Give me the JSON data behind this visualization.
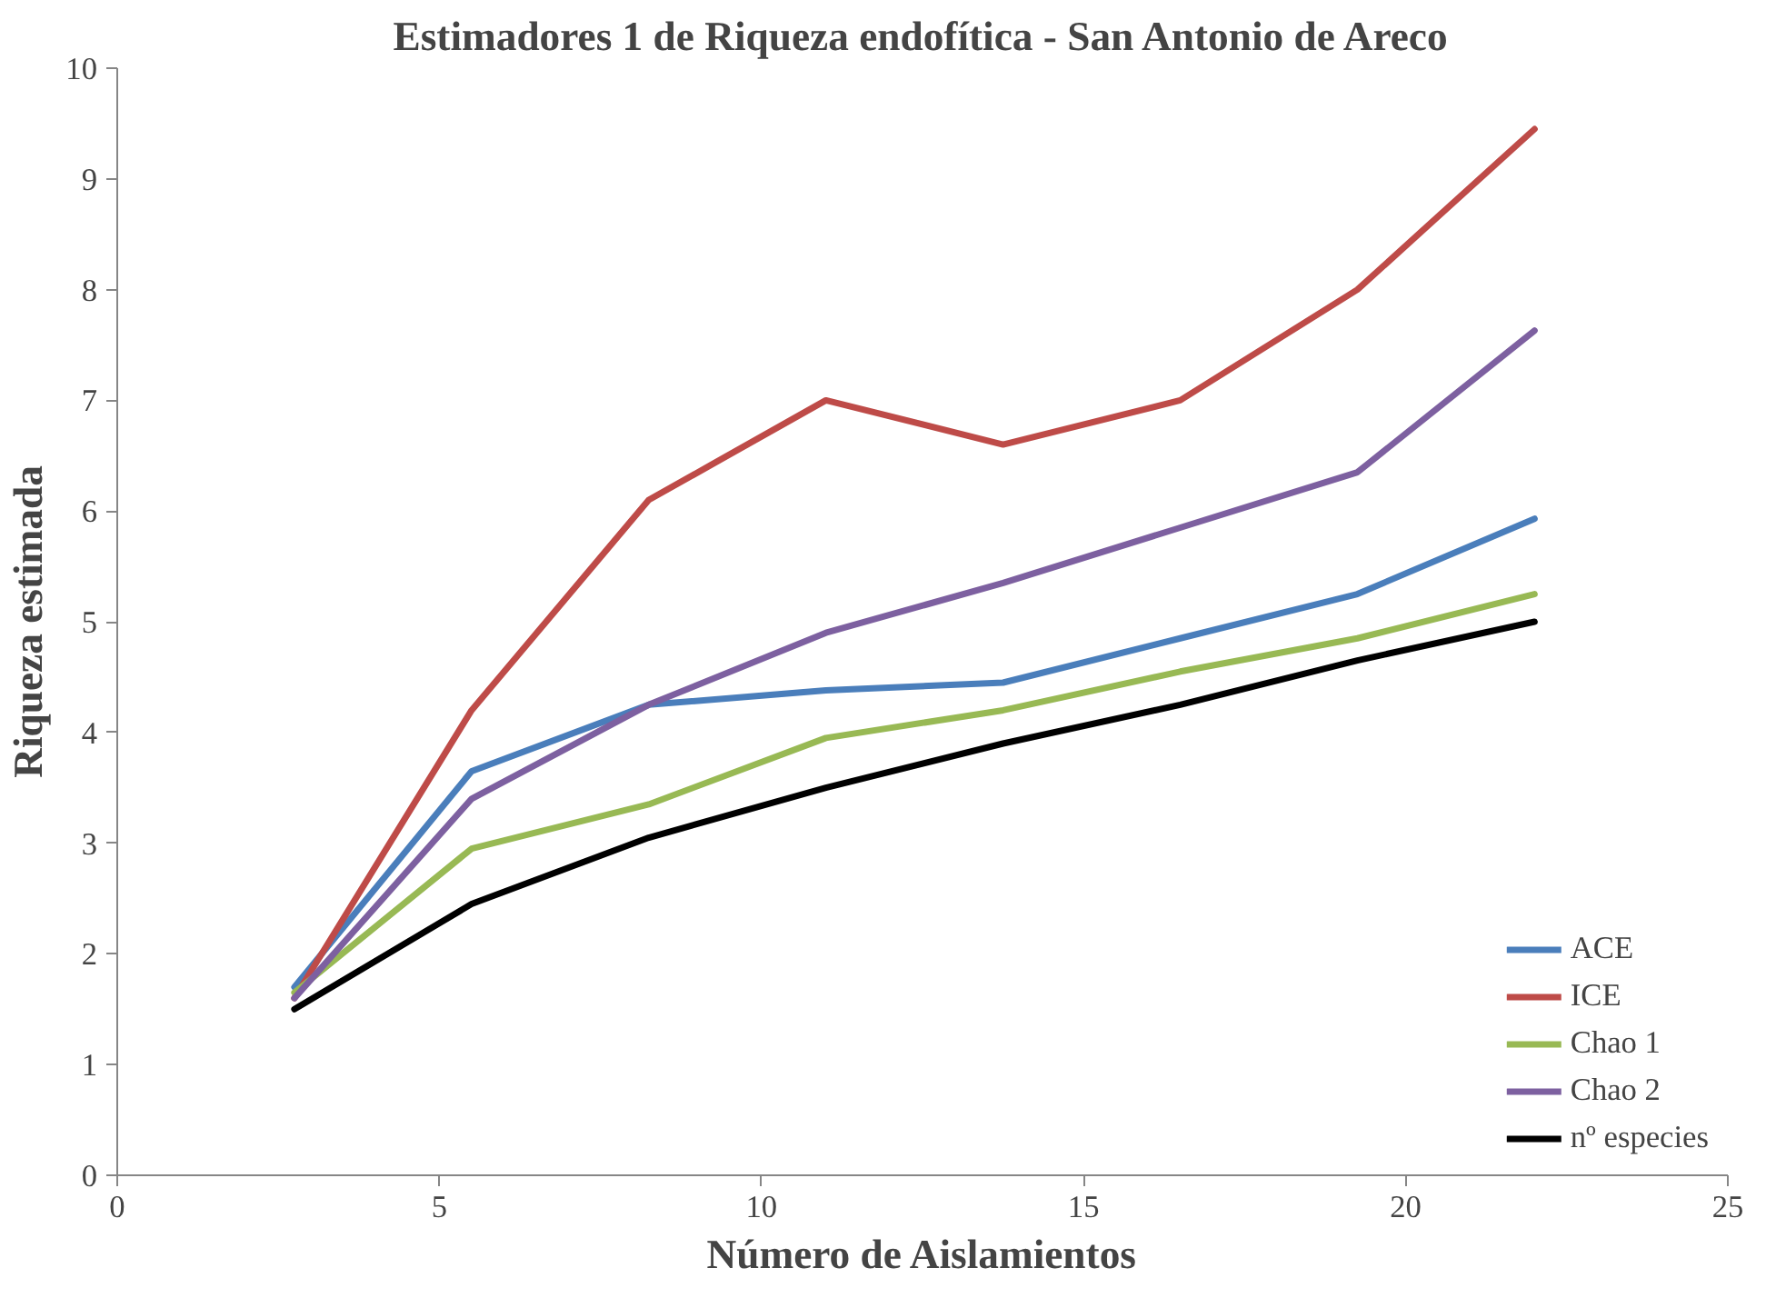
{
  "chart_data": {
    "type": "line",
    "title": "Estimadores 1 de Riqueza endofítica - San Antonio de Areco",
    "xlabel": "Número de Aislamientos",
    "ylabel": "Riqueza estimada",
    "x": [
      2.75,
      5.5,
      8.25,
      11,
      13.75,
      16.5,
      19.25,
      22
    ],
    "series": [
      {
        "name": "ACE",
        "color": "#4a7ebb",
        "values": [
          1.7,
          3.65,
          4.25,
          4.38,
          4.45,
          4.85,
          5.25,
          5.93
        ]
      },
      {
        "name": "ICE",
        "color": "#be4b48",
        "values": [
          1.6,
          4.2,
          6.1,
          7.0,
          6.6,
          7.0,
          8.0,
          9.45
        ]
      },
      {
        "name": "Chao 1",
        "color": "#98b954",
        "values": [
          1.65,
          2.95,
          3.35,
          3.95,
          4.2,
          4.55,
          4.85,
          5.25
        ]
      },
      {
        "name": "Chao 2",
        "color": "#7d60a0",
        "values": [
          1.6,
          3.4,
          4.25,
          4.9,
          5.35,
          5.85,
          6.35,
          7.63
        ]
      },
      {
        "name": "nº especies",
        "color": "#000000",
        "values": [
          1.5,
          2.45,
          3.05,
          3.5,
          3.9,
          4.25,
          4.65,
          5.0
        ]
      }
    ],
    "xlim": [
      0,
      25
    ],
    "xticks": [
      0,
      5,
      10,
      15,
      20,
      25
    ],
    "ylim": [
      0,
      10
    ],
    "yticks": [
      0,
      1,
      2,
      3,
      4,
      5,
      6,
      7,
      8,
      9,
      10
    ],
    "grid": false,
    "legend": "right",
    "marker": "none",
    "line_style": "solid"
  }
}
